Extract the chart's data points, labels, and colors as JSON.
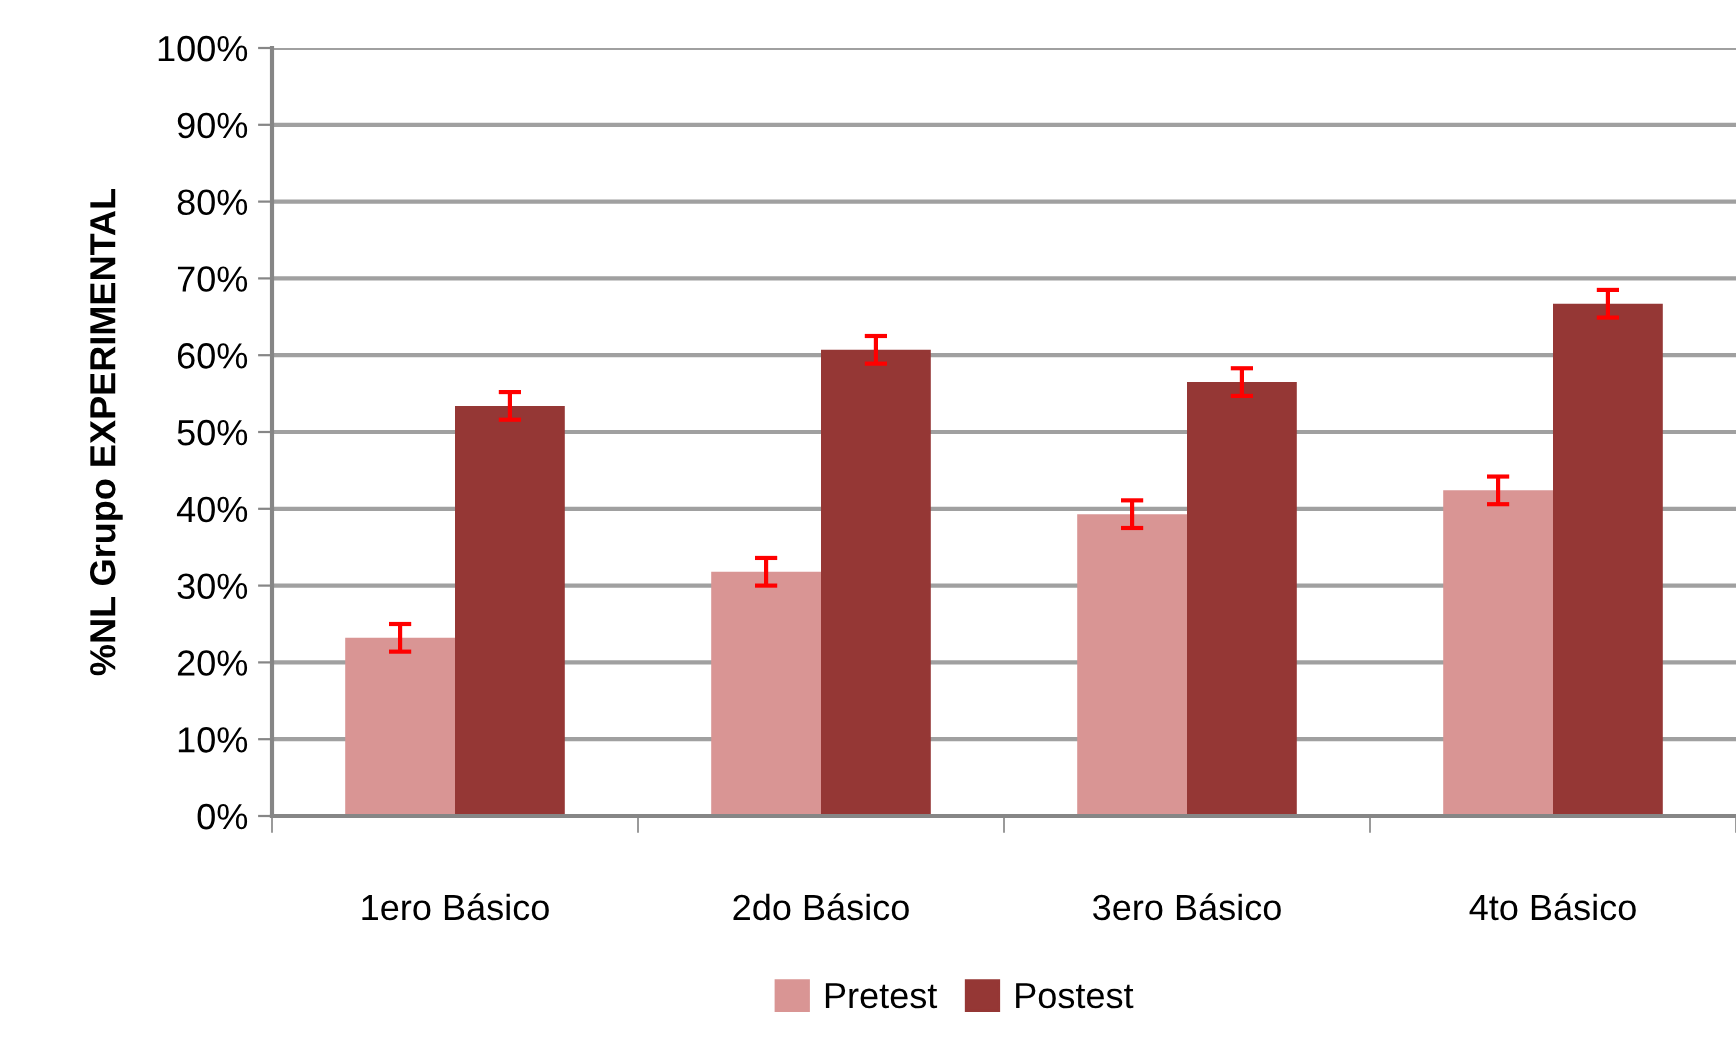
{
  "chart_data": {
    "type": "bar",
    "ylabel": "%NL Grupo EXPERIMENTAL",
    "categories": [
      "1ero Básico",
      "2do Básico",
      "3ero Básico",
      "4to Básico"
    ],
    "series": [
      {
        "name": "Pretest",
        "color": "#d99594",
        "values": [
          23.2,
          31.8,
          39.3,
          42.4
        ],
        "errors": [
          1.8,
          1.8,
          1.8,
          1.8
        ]
      },
      {
        "name": "Postest",
        "color": "#953735",
        "values": [
          53.4,
          60.7,
          56.5,
          66.7
        ],
        "errors": [
          1.8,
          1.8,
          1.8,
          1.8
        ]
      }
    ],
    "ylim": [
      0,
      100
    ],
    "yticks": [
      {
        "value": 0,
        "label": "0%"
      },
      {
        "value": 10,
        "label": "10%"
      },
      {
        "value": 20,
        "label": "20%"
      },
      {
        "value": 30,
        "label": "30%"
      },
      {
        "value": 40,
        "label": "40%"
      },
      {
        "value": 50,
        "label": "50%"
      },
      {
        "value": 60,
        "label": "60%"
      },
      {
        "value": 70,
        "label": "70%"
      },
      {
        "value": 80,
        "label": "80%"
      },
      {
        "value": 90,
        "label": "90%"
      },
      {
        "value": 100,
        "label": "100%"
      }
    ],
    "grid": "y",
    "legend": "bottom"
  }
}
